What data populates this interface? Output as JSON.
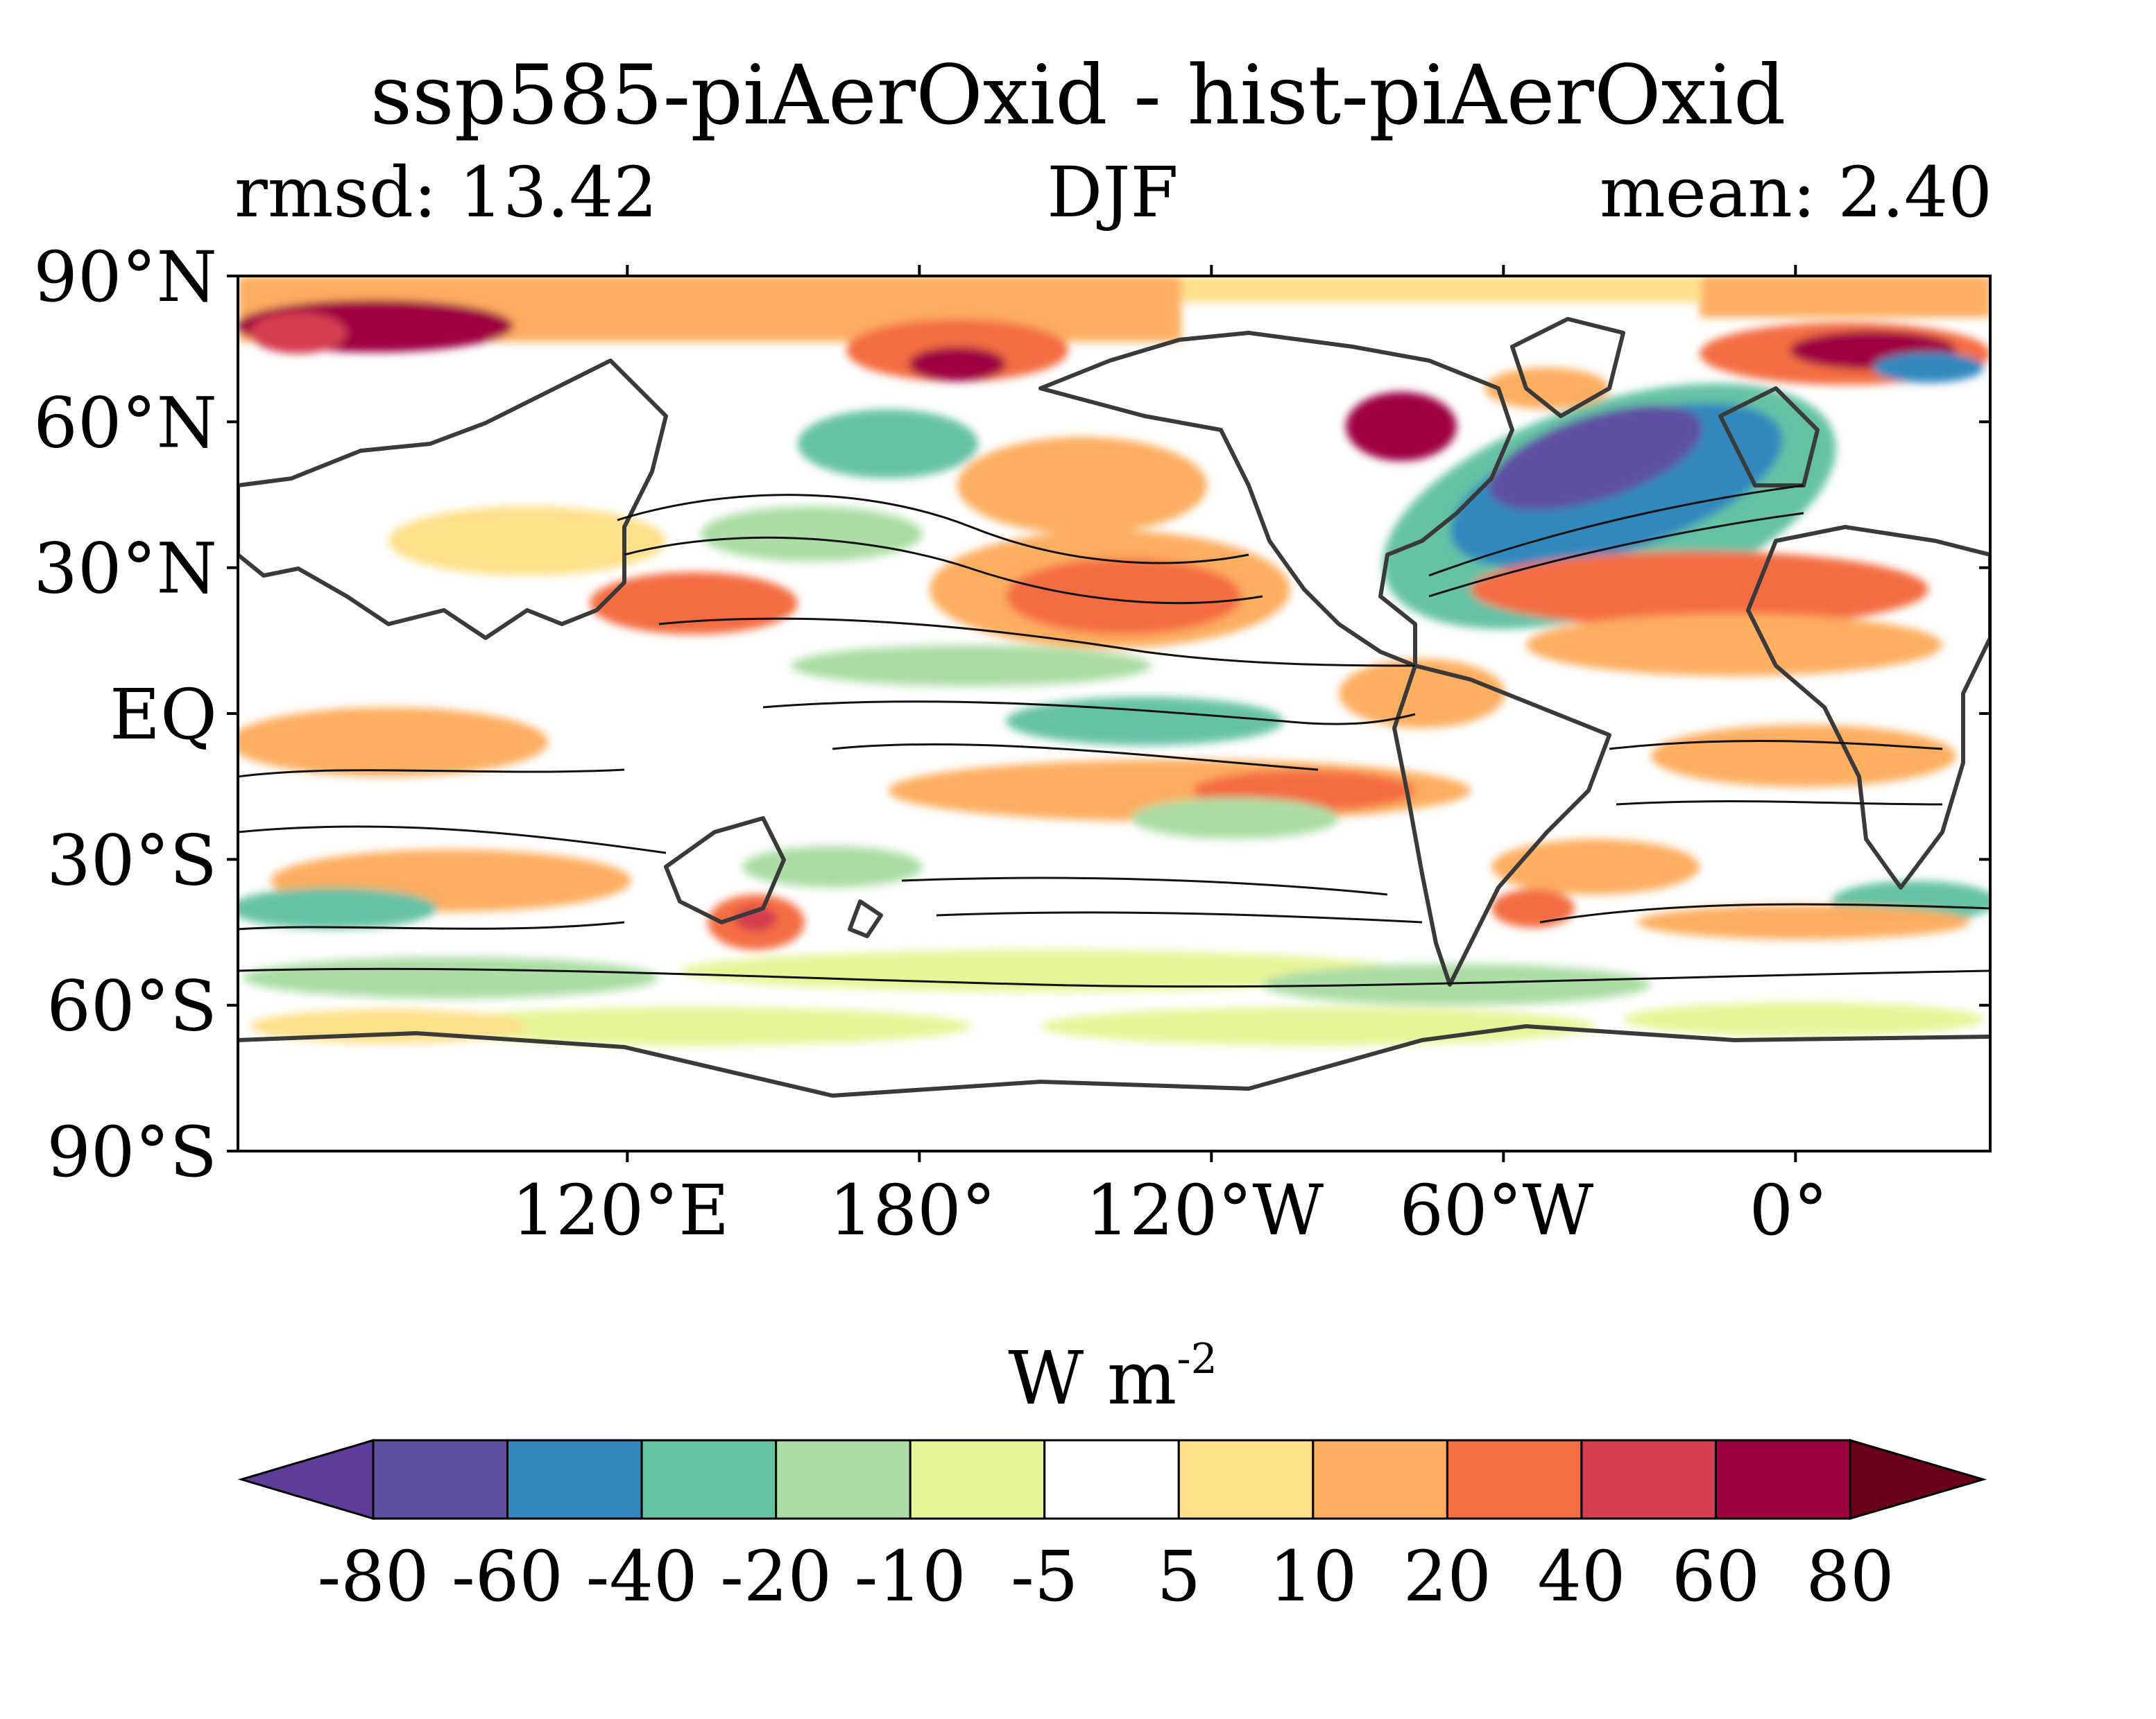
{
  "title": "ssp585-piAerOxid - hist-piAerOxid",
  "subtitle_left": "rmsd: 13.42",
  "subtitle_center": "DJF",
  "subtitle_right": "mean: 2.40",
  "map": {
    "projection": "equirectangular",
    "lon_range": [
      40,
      400
    ],
    "lat_range": [
      -90,
      90
    ],
    "lat_ticks": [
      {
        "value": 90,
        "label": "90°N"
      },
      {
        "value": 60,
        "label": "60°N"
      },
      {
        "value": 30,
        "label": "30°N"
      },
      {
        "value": 0,
        "label": "EQ"
      },
      {
        "value": -30,
        "label": "30°S"
      },
      {
        "value": -60,
        "label": "60°S"
      },
      {
        "value": -90,
        "label": "90°S"
      }
    ],
    "lon_ticks": [
      {
        "value": 120,
        "label": "120°E"
      },
      {
        "value": 180,
        "label": "180°"
      },
      {
        "value": 240,
        "label": "120°W"
      },
      {
        "value": 300,
        "label": "60°W"
      },
      {
        "value": 360,
        "label": "0°"
      }
    ]
  },
  "colorbar": {
    "units_base": "W m",
    "units_exp": "-2",
    "levels": [
      "-80",
      "-60",
      "-40",
      "-20",
      "-10",
      "-5",
      "5",
      "10",
      "20",
      "40",
      "60",
      "80"
    ],
    "colors": [
      "#5e3c99",
      "#5e4fa2",
      "#3288bd",
      "#66c2a5",
      "#abdda4",
      "#e6f598",
      "#ffffff",
      "#fee08b",
      "#fdae61",
      "#f46d43",
      "#d53e4f",
      "#9e0142",
      "#6a0019"
    ],
    "extend": "both"
  }
}
